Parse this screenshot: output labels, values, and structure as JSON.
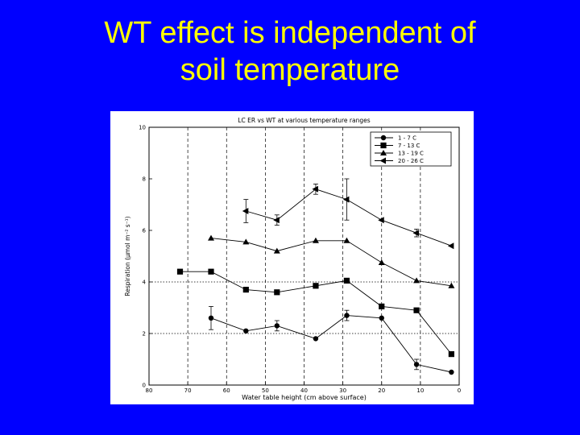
{
  "slide": {
    "title_line1": "WT effect is independent of",
    "title_line2": "soil temperature"
  },
  "colors": {
    "background": "#0000ff",
    "title": "#ffff00",
    "plot_bg": "#ffffff",
    "ink": "#000000"
  },
  "chart_data": {
    "type": "line",
    "title": "LC ER vs WT at various temperature ranges",
    "xlabel": "Water table height (cm above surface)",
    "ylabel": "Respiration (μmol m⁻² s⁻¹)",
    "xlim": [
      80,
      0
    ],
    "ylim": [
      0,
      10
    ],
    "x_ticks": [
      80,
      70,
      60,
      50,
      40,
      30,
      20,
      10,
      0
    ],
    "y_ticks": [
      0,
      2,
      4,
      6,
      8,
      10
    ],
    "x_reversed": true,
    "grid": "dashed vertical lines every 10 cm; dotted horizontal lines at 2 and 4",
    "legend_position": "top-right",
    "series": [
      {
        "name": "1 - 7 C",
        "marker": "circle",
        "points": [
          [
            64,
            2.6
          ],
          [
            55,
            2.1
          ],
          [
            47,
            2.3
          ],
          [
            37,
            1.8
          ],
          [
            29,
            2.7
          ],
          [
            20,
            2.6
          ],
          [
            11,
            0.8
          ],
          [
            2,
            0.5
          ]
        ],
        "error": [
          0.45,
          0.1,
          0.2,
          0.08,
          0.2,
          0.1,
          0.2,
          0.06
        ]
      },
      {
        "name": "7 - 13 C",
        "marker": "square",
        "points": [
          [
            72,
            4.4
          ],
          [
            64,
            4.4
          ],
          [
            55,
            3.7
          ],
          [
            47,
            3.6
          ],
          [
            37,
            3.85
          ],
          [
            29,
            4.05
          ],
          [
            20,
            3.05
          ],
          [
            11,
            2.9
          ],
          [
            2,
            1.2
          ]
        ],
        "error": [
          0.05,
          0.05,
          0.05,
          0.1,
          0.05,
          0.08,
          0.05,
          0.08,
          0.05
        ]
      },
      {
        "name": "13 - 19 C",
        "marker": "triangle-up",
        "points": [
          [
            64,
            5.7
          ],
          [
            55,
            5.55
          ],
          [
            47,
            5.2
          ],
          [
            37,
            5.6
          ],
          [
            29,
            5.6
          ],
          [
            20,
            4.75
          ],
          [
            11,
            4.05
          ],
          [
            2,
            3.85
          ]
        ],
        "error": [
          0.1,
          0.05,
          0.05,
          0.08,
          0.05,
          0.05,
          0.05,
          0.06
        ]
      },
      {
        "name": "20 - 26 C",
        "marker": "triangle-left",
        "points": [
          [
            55,
            6.75
          ],
          [
            47,
            6.4
          ],
          [
            37,
            7.6
          ],
          [
            29,
            7.2
          ],
          [
            20,
            6.4
          ],
          [
            11,
            5.9
          ],
          [
            2,
            5.4
          ]
        ],
        "error": [
          0.45,
          0.2,
          0.2,
          0.8,
          0.05,
          0.15,
          0.05
        ]
      }
    ]
  }
}
